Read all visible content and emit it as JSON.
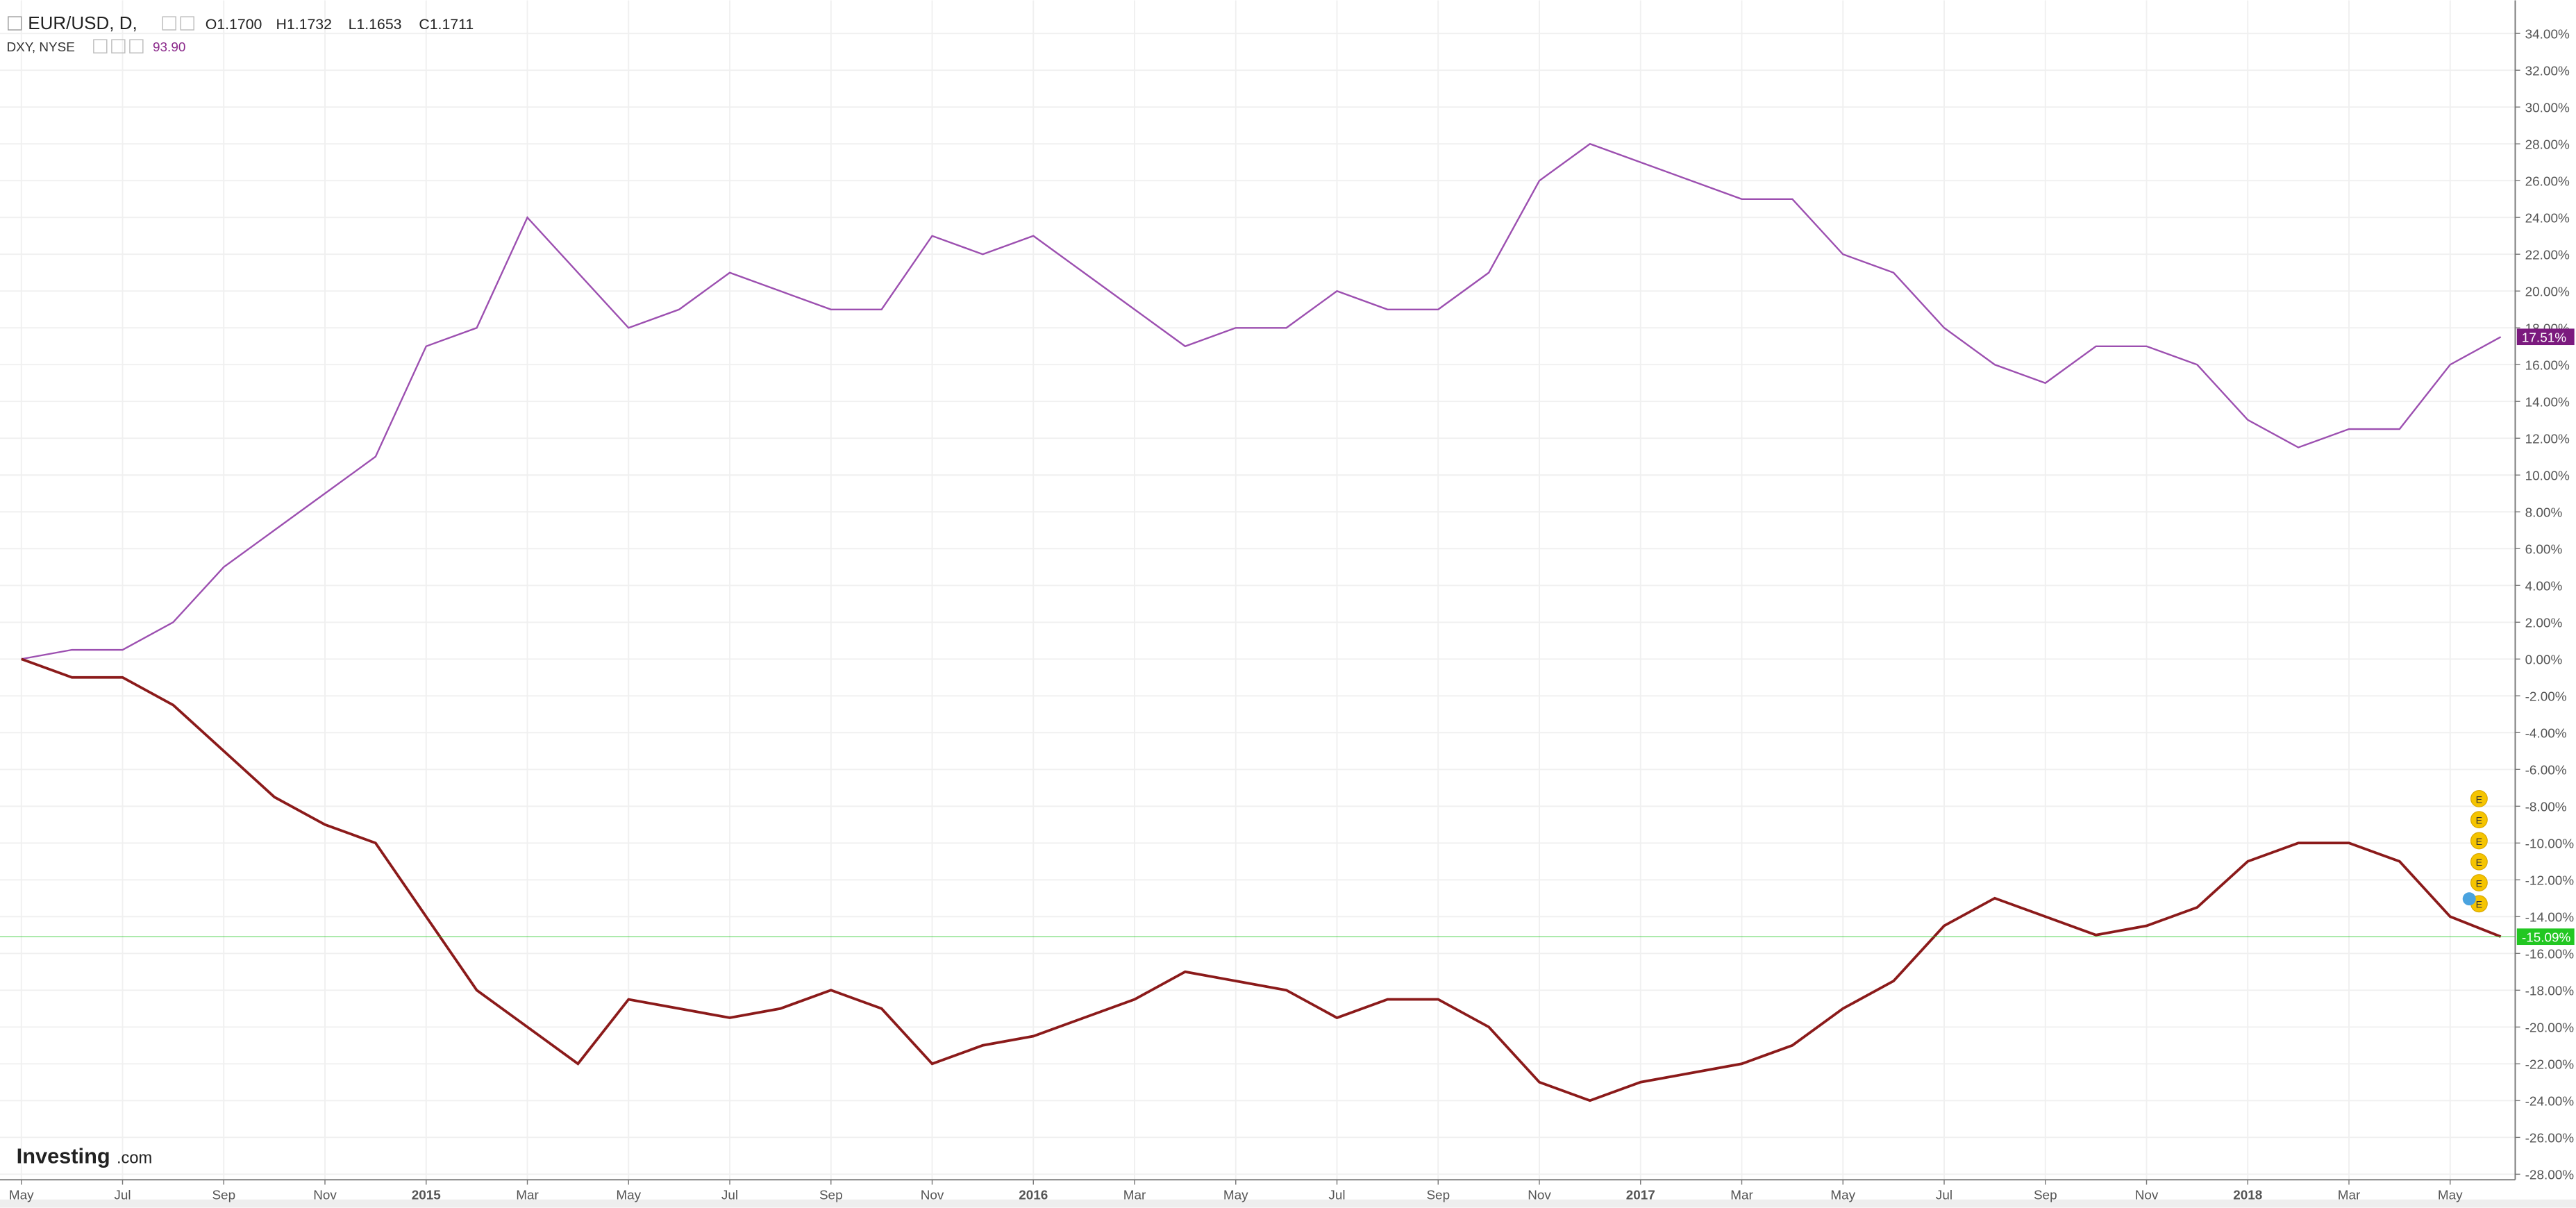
{
  "chart_data": {
    "type": "line",
    "title": "EUR/USD, D,",
    "ohlc": [
      "O1.1700",
      "H1.1732",
      "L1.1653",
      "C1.1711"
    ],
    "subtitle": "DXY, NYSE",
    "subtitle_value": "93.90",
    "brand": "Investing",
    "brand_suffix": ".com",
    "events": [
      "E",
      "E",
      "E",
      "E",
      "E",
      "E"
    ],
    "categories": [
      "May",
      null,
      "Jul",
      null,
      "Sep",
      null,
      "Nov",
      null,
      "2015",
      null,
      "Mar",
      null,
      "May",
      null,
      "Jul",
      null,
      "Sep",
      null,
      "Nov",
      null,
      "2016",
      null,
      "Mar",
      null,
      "May",
      null,
      "Jul",
      null,
      "Sep",
      null,
      "Nov",
      null,
      "2017",
      null,
      "Mar",
      null,
      "May",
      null,
      "Jul",
      null,
      "Sep",
      null,
      "Nov",
      null,
      "2018",
      null,
      "Mar",
      null,
      "May",
      null
    ],
    "series": [
      {
        "name": "DXY",
        "color": "#9c4fb0",
        "badge_color": "#7b1a7e",
        "last_label": "17.51%",
        "values": [
          0,
          0.5,
          0.5,
          2,
          5,
          7,
          9,
          11,
          17,
          18,
          24,
          21,
          18,
          19,
          21,
          20,
          19,
          19,
          23,
          22,
          23,
          21,
          19,
          17,
          18,
          18,
          20,
          19,
          19,
          21,
          26,
          28,
          27,
          26,
          25,
          25,
          22,
          21,
          18,
          16,
          15,
          17,
          17,
          16,
          13,
          11.5,
          12.5,
          12.5,
          16,
          17.51
        ]
      },
      {
        "name": "EUR/USD",
        "color": "#8b1a1a",
        "badge_color": "#22c722",
        "last_label": "-15.09%",
        "values": [
          0,
          -1,
          -1,
          -2.5,
          -5,
          -7.5,
          -9,
          -10,
          -14,
          -18,
          -20,
          -22,
          -18.5,
          -19,
          -19.5,
          -19,
          -18,
          -19,
          -22,
          -21,
          -20.5,
          -19.5,
          -18.5,
          -17,
          -17.5,
          -18,
          -19.5,
          -18.5,
          -18.5,
          -20,
          -23,
          -24,
          -23,
          -22.5,
          -22,
          -21,
          -19,
          -17.5,
          -14.5,
          -13,
          -14,
          -15,
          -14.5,
          -13.5,
          -11,
          -10,
          -10,
          -11,
          -14,
          -15.09
        ]
      }
    ],
    "ylim": [
      -28.3,
      35.8
    ],
    "yticks": [
      {
        "value": -28,
        "label": "-28.00%"
      },
      {
        "value": -26,
        "label": "-26.00%"
      },
      {
        "value": -24,
        "label": "-24.00%"
      },
      {
        "value": -22,
        "label": "-22.00%"
      },
      {
        "value": -20,
        "label": "-20.00%"
      },
      {
        "value": -18,
        "label": "-18.00%"
      },
      {
        "value": -16,
        "label": "-16.00%"
      },
      {
        "value": -14,
        "label": "-14.00%"
      },
      {
        "value": -12,
        "label": "-12.00%"
      },
      {
        "value": -10,
        "label": "-10.00%"
      },
      {
        "value": -8,
        "label": "-8.00%"
      },
      {
        "value": -6,
        "label": "-6.00%"
      },
      {
        "value": -4,
        "label": "-4.00%"
      },
      {
        "value": -2,
        "label": "-2.00%"
      },
      {
        "value": 0,
        "label": "0.00%"
      },
      {
        "value": 2,
        "label": "2.00%"
      },
      {
        "value": 4,
        "label": "4.00%"
      },
      {
        "value": 6,
        "label": "6.00%"
      },
      {
        "value": 8,
        "label": "8.00%"
      },
      {
        "value": 10,
        "label": "10.00%"
      },
      {
        "value": 12,
        "label": "12.00%"
      },
      {
        "value": 14,
        "label": "14.00%"
      },
      {
        "value": 16,
        "label": "16.00%"
      },
      {
        "value": 18,
        "label": "18.00%"
      },
      {
        "value": 20,
        "label": "20.00%"
      },
      {
        "value": 22,
        "label": "22.00%"
      },
      {
        "value": 24,
        "label": "24.00%"
      },
      {
        "value": 26,
        "label": "26.00%"
      },
      {
        "value": 28,
        "label": "28.00%"
      },
      {
        "value": 30,
        "label": "30.00%"
      },
      {
        "value": 32,
        "label": "32.00%"
      },
      {
        "value": 34,
        "label": "34.00%"
      }
    ],
    "grid": true
  }
}
